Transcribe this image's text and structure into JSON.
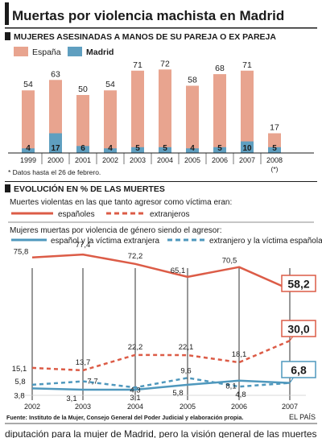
{
  "header": {
    "title": "Muertas por violencia machista en Madrid",
    "subtitle": "MUJERES ASESINADAS A MANOS DE SU PAREJA O EX PAREJA"
  },
  "footnote": "* Datos hasta el 26 de febrero.",
  "section2_title": "EVOLUCIÓN EN % DE LAS MUERTES",
  "legend_group1_title": "Muertes violentas en las que tanto agresor como víctima eran:",
  "legend_group2_title": "Mujeres muertas por violencia de género siendo el agresor:",
  "source": "Fuente: Instituto de la Mujer, Consejo General del Poder Judicial y elaboración propia.",
  "credit": "EL PAÍS",
  "bottom_cut_text": "diputación para la mujer de Madrid, pero la visión general de las muertes",
  "colors": {
    "spain": "#e8a48f",
    "madrid": "#5f9fc0",
    "line_red": "#dc5c47",
    "line_blue": "#4f98bd",
    "ink": "#1b1b1b"
  },
  "chart_data": [
    {
      "type": "bar",
      "categories": [
        "1999",
        "2000",
        "2001",
        "2002",
        "2003",
        "2004",
        "2005",
        "2006",
        "2007",
        "2008"
      ],
      "category_note": "(*)",
      "series": [
        {
          "name": "España",
          "values": [
            54,
            63,
            50,
            54,
            71,
            72,
            58,
            68,
            71,
            17
          ]
        },
        {
          "name": "Madrid",
          "values": [
            4,
            17,
            6,
            4,
            5,
            5,
            4,
            5,
            10,
            5
          ]
        }
      ],
      "legend_placement": "top-left",
      "ylim": [
        0,
        72
      ]
    },
    {
      "type": "line",
      "x": [
        "2002",
        "2003",
        "2004",
        "2005",
        "2006",
        "2007"
      ],
      "series": [
        {
          "name": "españoles",
          "style": "solid",
          "color": "#dc5c47",
          "values": [
            75.8,
            77.4,
            72.2,
            65.1,
            70.5,
            58.2
          ]
        },
        {
          "name": "extranjeros",
          "style": "dashed",
          "color": "#dc5c47",
          "values": [
            15.1,
            13.7,
            22.2,
            22.1,
            18.1,
            30.0
          ]
        },
        {
          "name": "español y la víctima extranjera",
          "style": "solid",
          "color": "#4f98bd",
          "values": [
            3.8,
            3.1,
            3.1,
            5.8,
            8.1,
            6.8
          ]
        },
        {
          "name": "extranjero y la víctima española",
          "style": "dashed",
          "color": "#4f98bd",
          "values": [
            5.8,
            7.7,
            4.3,
            9.6,
            4.8,
            6.8
          ]
        }
      ],
      "labels": {
        "s0": [
          "75,8",
          "77,4",
          "72,2",
          "65,1",
          "70,5",
          "58,2"
        ],
        "s1": [
          "15,1",
          "13,7",
          "22,2",
          "22,1",
          "18,1",
          "30,0"
        ],
        "s2": [
          "3,8",
          "3,1",
          "3,1",
          "5,8",
          "8,1",
          "6,8"
        ],
        "s3": [
          "5,8",
          "7,7",
          "4,3",
          "9,6",
          "4,8",
          ""
        ]
      }
    }
  ]
}
